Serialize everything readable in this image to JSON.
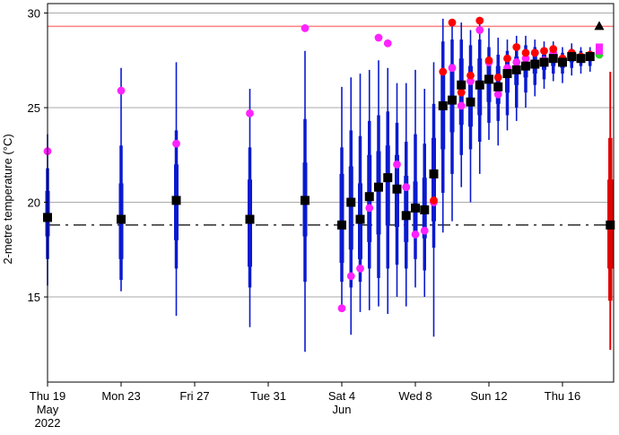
{
  "chart_data": {
    "type": "box-plot-time-series",
    "title": "",
    "xlabel": "",
    "ylabel": "2-metre temperature (°C)",
    "ylim": [
      10.5,
      30.5
    ],
    "xlim": [
      0,
      30.6
    ],
    "x_unit": "days since Thu 19 May 2022",
    "grid": {
      "horizontal": true,
      "vertical": false
    },
    "y_ticks": [
      15,
      20,
      25,
      30
    ],
    "x_ticks": [
      {
        "x": 0,
        "lines": [
          "Thu 19",
          "May",
          "2022"
        ]
      },
      {
        "x": 4,
        "lines": [
          "Mon 23"
        ]
      },
      {
        "x": 8,
        "lines": [
          "Fri 27"
        ]
      },
      {
        "x": 12,
        "lines": [
          "Tue 31"
        ]
      },
      {
        "x": 16,
        "lines": [
          "Sat 4",
          "Jun"
        ]
      },
      {
        "x": 20,
        "lines": [
          "Wed  8"
        ]
      },
      {
        "x": 24,
        "lines": [
          "Sun 12"
        ]
      },
      {
        "x": 28,
        "lines": [
          "Thu 16"
        ]
      }
    ],
    "reference_lines": {
      "climate_median": 18.8,
      "record_max": 29.3
    },
    "colors": {
      "ensemble": "#0a1ad0",
      "climate": "#e00000",
      "median_marker": "#000000",
      "magenta_marker": "#ff22ff",
      "red_marker": "#ff0000",
      "green_marker": "#22dd22",
      "reference_line": "#000000",
      "record_line": "#ff8080",
      "grid": "#aaaaaa"
    },
    "ensemble": [
      {
        "x": 0.0,
        "min": 15.6,
        "p10": 17.0,
        "p25": 18.2,
        "median": 19.2,
        "p75": 20.6,
        "p90": 21.8,
        "max": 23.6,
        "magenta": 22.7
      },
      {
        "x": 4.0,
        "min": 15.3,
        "p10": 15.9,
        "p25": 17.0,
        "median": 19.1,
        "p75": 21.0,
        "p90": 23.0,
        "max": 27.1,
        "magenta": 25.9
      },
      {
        "x": 7.0,
        "min": 14.0,
        "p10": 16.5,
        "p25": 18.0,
        "median": 20.1,
        "p75": 22.0,
        "p90": 23.8,
        "max": 27.4,
        "magenta": 23.1
      },
      {
        "x": 11.0,
        "min": 13.4,
        "p10": 15.5,
        "p25": 16.6,
        "median": 19.1,
        "p75": 21.2,
        "p90": 22.9,
        "max": 26.0,
        "magenta": 24.7
      },
      {
        "x": 14.0,
        "min": 12.1,
        "p10": 15.8,
        "p25": 18.2,
        "median": 20.1,
        "p75": 22.1,
        "p90": 24.4,
        "max": 28.0,
        "magenta": 29.2
      },
      {
        "x": 16.0,
        "min": 14.5,
        "p10": 15.8,
        "p25": 16.8,
        "median": 18.8,
        "p75": 21.5,
        "p90": 22.9,
        "max": 26.1,
        "magenta": 14.4
      },
      {
        "x": 16.5,
        "min": 13.0,
        "p10": 15.5,
        "p25": 17.5,
        "median": 20.0,
        "p75": 21.9,
        "p90": 23.8,
        "max": 26.6,
        "magenta": 16.1
      },
      {
        "x": 17.0,
        "min": 14.2,
        "p10": 15.8,
        "p25": 17.0,
        "median": 19.1,
        "p75": 21.0,
        "p90": 23.5,
        "max": 26.8,
        "magenta": 16.5
      },
      {
        "x": 17.5,
        "min": 14.3,
        "p10": 16.5,
        "p25": 17.9,
        "median": 20.3,
        "p75": 22.5,
        "p90": 24.3,
        "max": 27.0,
        "magenta": 19.7
      },
      {
        "x": 18.0,
        "min": 14.5,
        "p10": 16.0,
        "p25": 18.3,
        "median": 20.8,
        "p75": 22.7,
        "p90": 24.6,
        "max": 27.5,
        "magenta": 28.7
      },
      {
        "x": 18.5,
        "min": 14.1,
        "p10": 16.5,
        "p25": 18.8,
        "median": 21.3,
        "p75": 23.0,
        "p90": 24.8,
        "max": 27.1,
        "magenta": 28.4
      },
      {
        "x": 19.0,
        "min": 15.0,
        "p10": 16.7,
        "p25": 18.7,
        "median": 20.7,
        "p75": 22.5,
        "p90": 24.2,
        "max": 26.3,
        "magenta": 22.0
      },
      {
        "x": 19.5,
        "min": 14.5,
        "p10": 16.5,
        "p25": 17.9,
        "median": 19.3,
        "p75": 21.4,
        "p90": 23.2,
        "max": 26.3,
        "magenta": 20.8
      },
      {
        "x": 20.0,
        "min": 15.5,
        "p10": 17.0,
        "p25": 18.2,
        "median": 19.7,
        "p75": 21.1,
        "p90": 23.6,
        "max": 27.0,
        "magenta": 18.3
      },
      {
        "x": 20.5,
        "min": 15.0,
        "p10": 16.4,
        "p25": 18.1,
        "median": 19.6,
        "p75": 21.3,
        "p90": 23.1,
        "max": 26.0,
        "magenta": 18.5
      },
      {
        "x": 21.0,
        "min": 12.9,
        "p10": 17.6,
        "p25": 19.0,
        "median": 21.5,
        "p75": 23.4,
        "p90": 25.2,
        "max": 27.4,
        "magenta": 20.0,
        "red": 20.1
      },
      {
        "x": 21.5,
        "min": 18.4,
        "p10": 20.5,
        "p25": 22.8,
        "median": 25.1,
        "p75": 27.0,
        "p90": 28.5,
        "max": 29.7,
        "magenta": 25.1,
        "red": 26.9
      },
      {
        "x": 22.0,
        "min": 19.0,
        "p10": 21.5,
        "p25": 23.7,
        "median": 25.4,
        "p75": 27.3,
        "p90": 28.6,
        "max": 29.6,
        "magenta": 27.1,
        "red": 29.5
      },
      {
        "x": 22.5,
        "min": 20.8,
        "p10": 22.5,
        "p25": 24.1,
        "median": 26.2,
        "p75": 27.6,
        "p90": 28.6,
        "max": 29.5,
        "magenta": 25.1,
        "red": 25.8
      },
      {
        "x": 23.0,
        "min": 20.0,
        "p10": 22.8,
        "p25": 24.0,
        "median": 25.3,
        "p75": 27.2,
        "p90": 28.3,
        "max": 29.1,
        "magenta": 26.4,
        "red": 26.7
      },
      {
        "x": 23.5,
        "min": 21.5,
        "p10": 23.2,
        "p25": 24.6,
        "median": 26.2,
        "p75": 27.6,
        "p90": 28.6,
        "max": 29.5,
        "magenta": 29.1,
        "red": 29.6
      },
      {
        "x": 24.0,
        "min": 23.3,
        "p10": 24.2,
        "p25": 25.3,
        "median": 26.5,
        "p75": 27.5,
        "p90": 28.2,
        "max": 29.2,
        "magenta": 27.4,
        "red": 27.5
      },
      {
        "x": 24.5,
        "min": 23.0,
        "p10": 24.3,
        "p25": 25.2,
        "median": 26.1,
        "p75": 27.2,
        "p90": 27.8,
        "max": 28.7,
        "magenta": 25.7,
        "red": 26.6
      },
      {
        "x": 25.0,
        "min": 23.8,
        "p10": 24.6,
        "p25": 25.8,
        "median": 26.8,
        "p75": 27.5,
        "p90": 28.0,
        "max": 28.6,
        "magenta": 27.1,
        "red": 27.6
      },
      {
        "x": 25.5,
        "min": 24.3,
        "p10": 25.0,
        "p25": 26.2,
        "median": 27.0,
        "p75": 27.7,
        "p90": 28.2,
        "max": 28.8,
        "magenta": 27.4,
        "red": 28.2
      },
      {
        "x": 26.0,
        "min": 25.0,
        "p10": 25.8,
        "p25": 26.6,
        "median": 27.2,
        "p75": 27.8,
        "p90": 28.3,
        "max": 28.8,
        "magenta": 27.6,
        "red": 27.9
      },
      {
        "x": 26.5,
        "min": 25.6,
        "p10": 26.2,
        "p25": 26.8,
        "median": 27.3,
        "p75": 27.8,
        "p90": 28.2,
        "max": 28.6,
        "magenta": 27.9,
        "red": 27.9
      },
      {
        "x": 27.0,
        "min": 26.0,
        "p10": 26.5,
        "p25": 27.0,
        "median": 27.4,
        "p75": 27.8,
        "p90": 28.1,
        "max": 28.5,
        "magenta": 27.5,
        "red": 28.0
      },
      {
        "x": 27.5,
        "min": 26.4,
        "p10": 26.8,
        "p25": 27.2,
        "median": 27.6,
        "p75": 27.9,
        "p90": 28.2,
        "max": 28.5,
        "magenta": 27.9,
        "red": 28.1
      },
      {
        "x": 28.0,
        "min": 26.3,
        "p10": 26.8,
        "p25": 27.1,
        "median": 27.4,
        "p75": 27.7,
        "p90": 27.9,
        "max": 28.2,
        "magenta": 27.5,
        "red": 27.6
      },
      {
        "x": 28.5,
        "min": 26.7,
        "p10": 27.1,
        "p25": 27.4,
        "median": 27.7,
        "p75": 27.9,
        "p90": 28.1,
        "max": 28.4,
        "magenta": 27.8,
        "red": 27.9
      },
      {
        "x": 29.0,
        "min": 26.8,
        "p10": 27.2,
        "p25": 27.4,
        "median": 27.6,
        "p75": 27.8,
        "p90": 28.0,
        "max": 28.2,
        "magenta": 27.6,
        "red": 27.7
      },
      {
        "x": 29.5,
        "min": 26.9,
        "p10": 27.2,
        "p25": 27.5,
        "median": 27.7,
        "p75": 27.9,
        "p90": 28.0,
        "max": 28.2,
        "magenta": 27.7,
        "red": 27.8
      }
    ],
    "final_markers": [
      {
        "x": 30.0,
        "value": 28.2,
        "shape": "square",
        "color": "#ff22ff"
      },
      {
        "x": 30.0,
        "value": 27.8,
        "shape": "circle",
        "color": "#22dd22"
      },
      {
        "x": 30.0,
        "value": 28.0,
        "shape": "square",
        "color": "#ff22ff"
      }
    ],
    "climate": {
      "x": 30.6,
      "min": 12.2,
      "p10": 14.8,
      "p25": 16.5,
      "median": 18.8,
      "p75": 21.2,
      "p90": 23.4,
      "max": 26.9
    },
    "record_marker": {
      "x": 30.0,
      "value": 29.3,
      "shape": "triangle"
    }
  }
}
